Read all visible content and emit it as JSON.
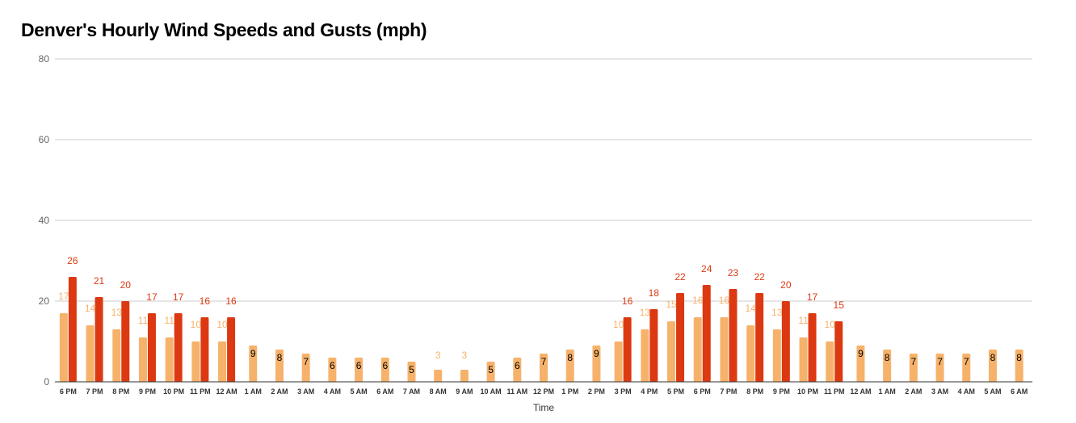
{
  "chart_data": {
    "type": "bar",
    "title": "Denver's Hourly Wind Speeds and Gusts (mph)",
    "xlabel": "Time",
    "ylabel": "",
    "ylim": [
      0,
      80
    ],
    "yticks": [
      0,
      20,
      40,
      60,
      80
    ],
    "grid": true,
    "categories": [
      "6 PM",
      "7 PM",
      "8 PM",
      "9 PM",
      "10 PM",
      "11 PM",
      "12 AM",
      "1 AM",
      "2 AM",
      "3 AM",
      "4 AM",
      "5 AM",
      "6 AM",
      "7 AM",
      "8 AM",
      "9 AM",
      "10 AM",
      "11 AM",
      "12 PM",
      "1 PM",
      "2 PM",
      "3 PM",
      "4 PM",
      "5 PM",
      "6 PM",
      "7 PM",
      "8 PM",
      "9 PM",
      "10 PM",
      "11 PM",
      "12 AM",
      "1 AM",
      "2 AM",
      "3 AM",
      "4 AM",
      "5 AM",
      "6 AM"
    ],
    "series": [
      {
        "color": "#f6b26b",
        "label_color": "#f6b26b",
        "values": [
          17,
          14,
          13,
          11,
          11,
          10,
          10,
          9,
          8,
          7,
          6,
          6,
          6,
          5,
          3,
          3,
          5,
          6,
          7,
          8,
          9,
          10,
          13,
          15,
          16,
          16,
          14,
          13,
          11,
          10,
          9,
          8,
          7,
          7,
          7,
          8,
          8
        ]
      },
      {
        "color": "#dc3912",
        "label_color": "#dc3912",
        "values": [
          26,
          21,
          20,
          17,
          17,
          16,
          16,
          null,
          null,
          null,
          null,
          null,
          null,
          null,
          null,
          null,
          null,
          null,
          null,
          null,
          null,
          16,
          18,
          22,
          24,
          23,
          22,
          20,
          17,
          15,
          null,
          null,
          null,
          null,
          null,
          null,
          null
        ]
      }
    ]
  }
}
